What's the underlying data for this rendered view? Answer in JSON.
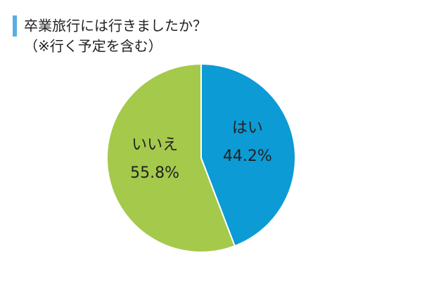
{
  "chart_data": {
    "type": "pie",
    "title": "卒業旅行には行きましたか？",
    "subtitle": "（※行く予定を含む）",
    "categories": [
      "はい",
      "いいえ"
    ],
    "values": [
      44.2,
      55.8
    ],
    "value_labels": [
      "44.2%",
      "55.8%"
    ],
    "colors": [
      "#0c9bd4",
      "#a4c94b"
    ]
  }
}
